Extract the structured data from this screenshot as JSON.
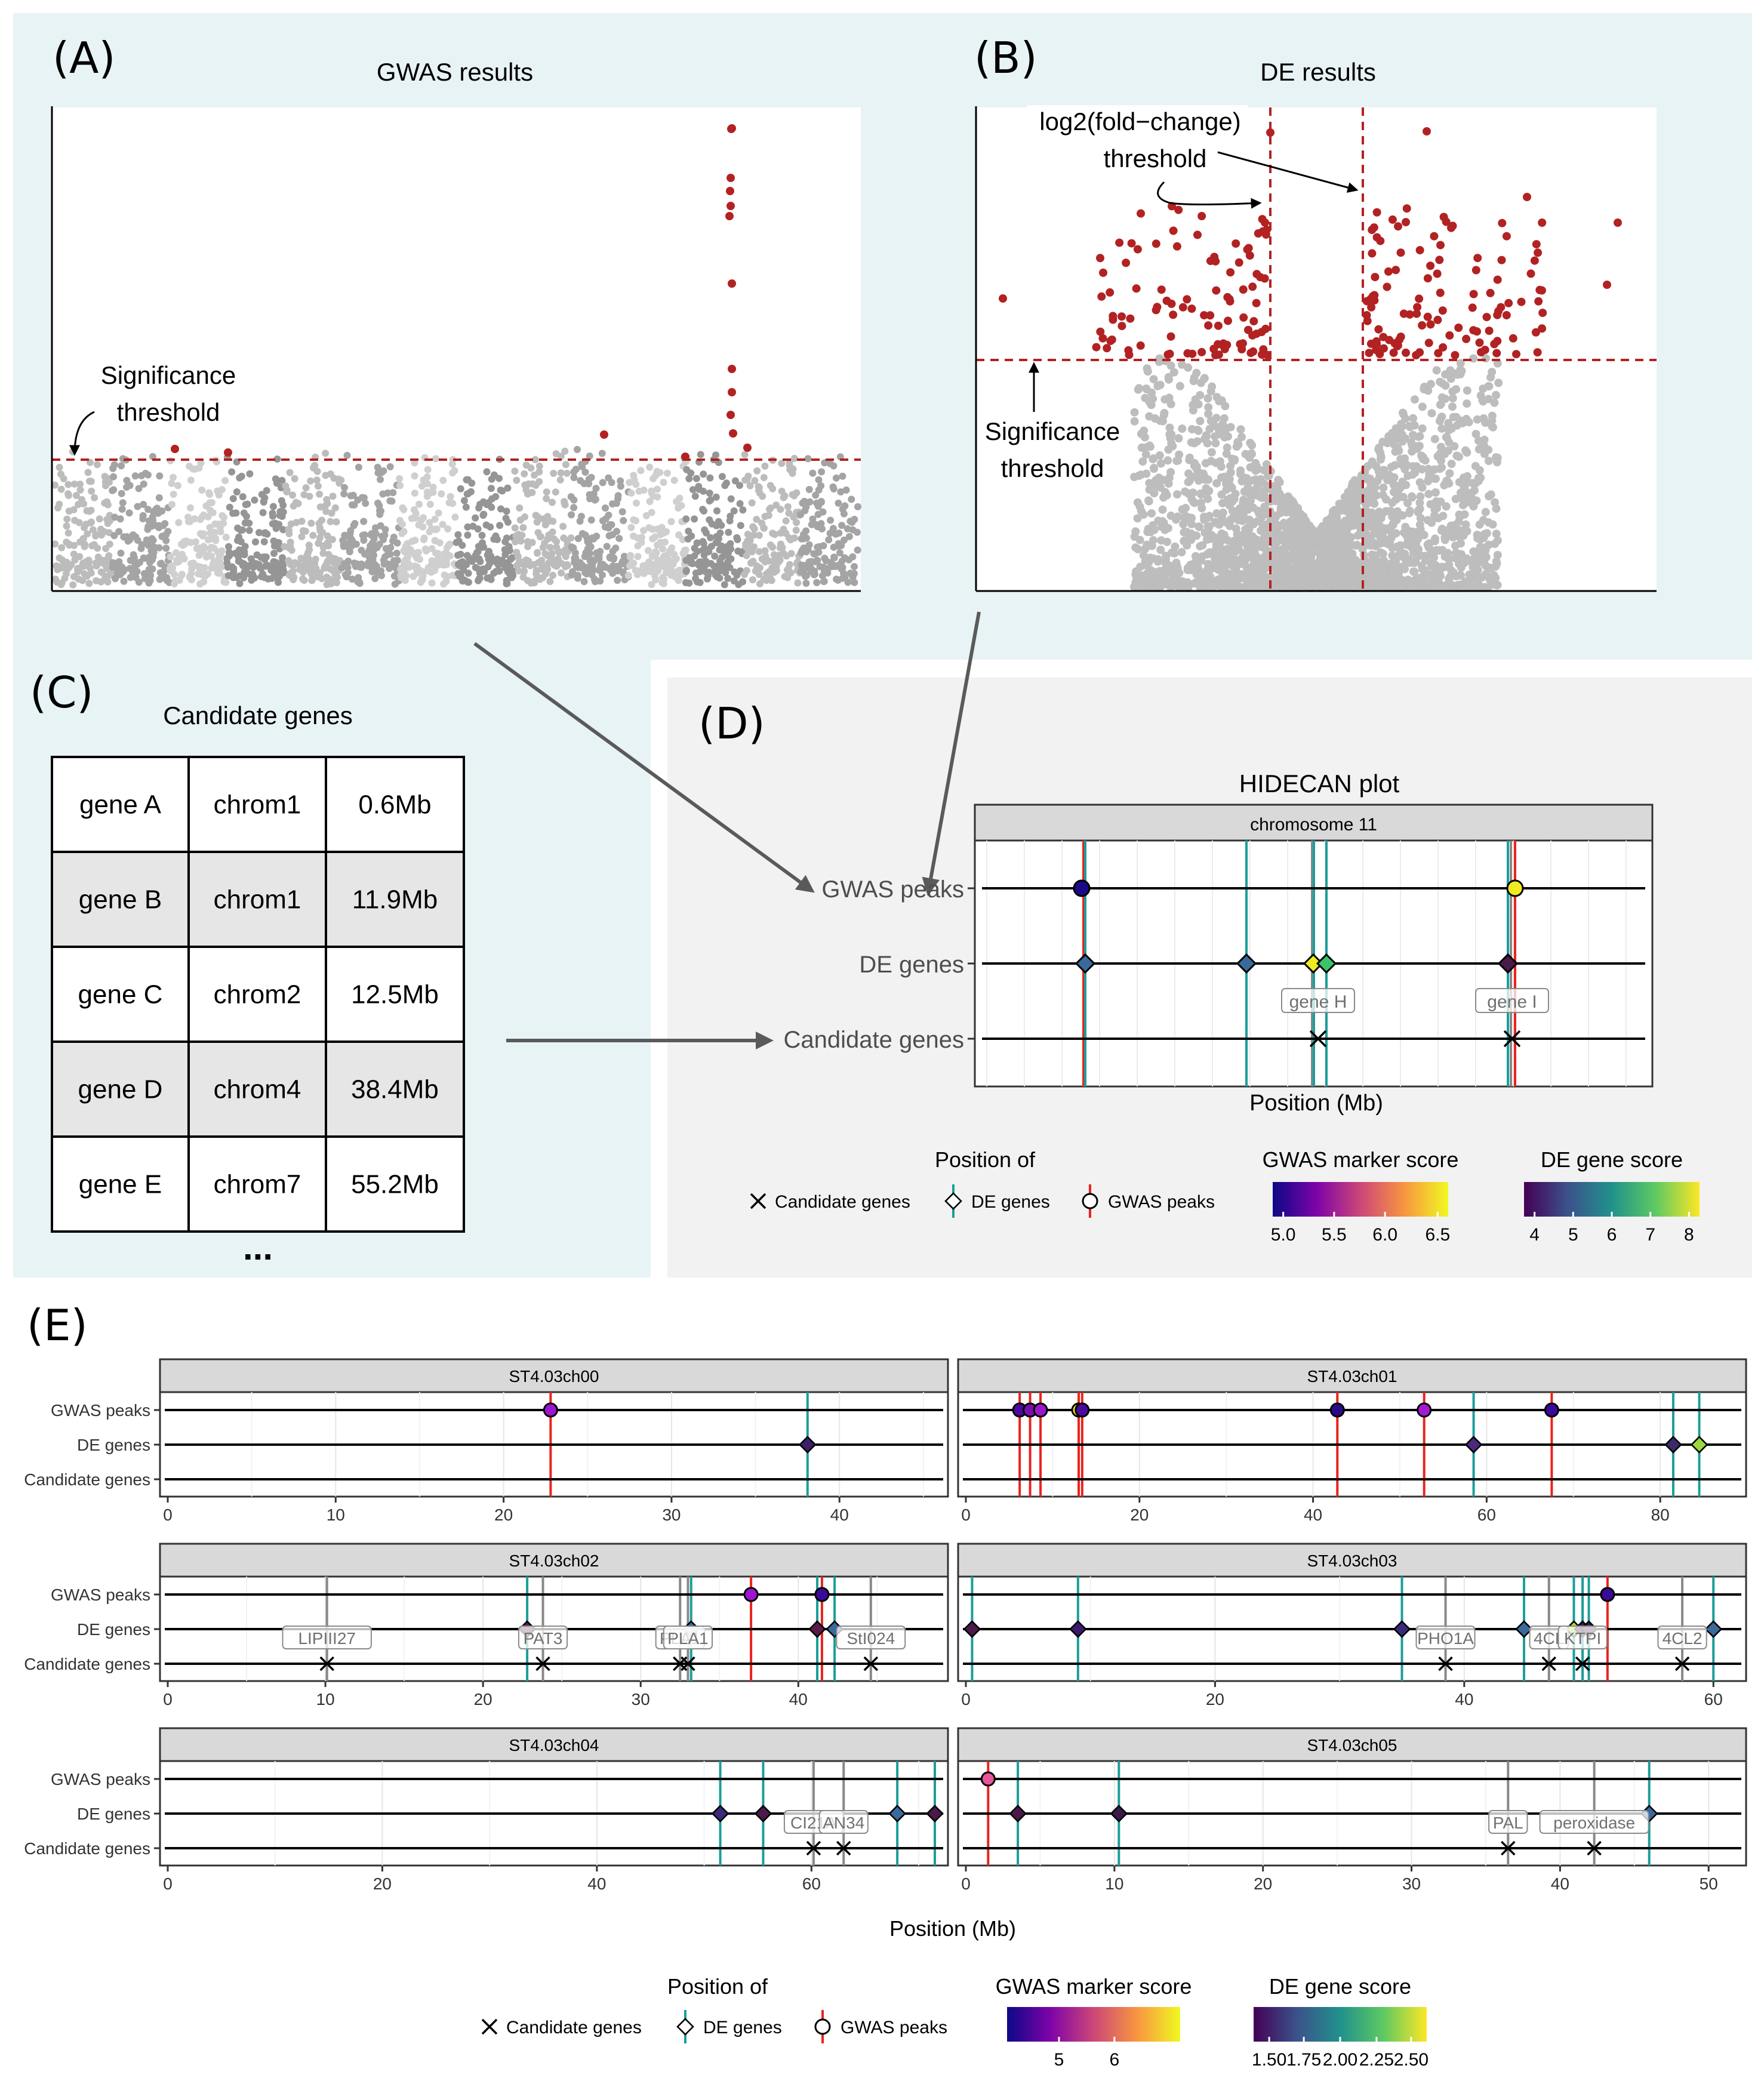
{
  "colors": {
    "panel_blue": "#e8f3f5",
    "panel_grey": "#f2f2f2",
    "red": "#b22222",
    "grey": "#bdbdbd",
    "gwas_line": "#e8241e",
    "de_line": "#1b9e9a",
    "cand_line": "#888888",
    "arrow": "#5a5a5a"
  },
  "panel_a": {
    "label": "(A)",
    "title": "GWAS results",
    "annotation_line1": "Significance",
    "annotation_line2": "threshold"
  },
  "panel_b": {
    "label": "(B)",
    "title": "DE results",
    "fc_line1": "log2(fold−change)",
    "fc_line2": "threshold",
    "sig_line1": "Significance",
    "sig_line2": "threshold"
  },
  "panel_c": {
    "label": "(C)",
    "title": "Candidate genes",
    "rows": [
      [
        "gene A",
        "chrom1",
        "0.6Mb"
      ],
      [
        "gene B",
        "chrom1",
        "11.9Mb"
      ],
      [
        "gene C",
        "chrom2",
        "12.5Mb"
      ],
      [
        "gene D",
        "chrom4",
        "38.4Mb"
      ],
      [
        "gene E",
        "chrom7",
        "55.2Mb"
      ]
    ],
    "ellipsis": "..."
  },
  "panel_d": {
    "label": "(D)",
    "title": "HIDECAN plot",
    "strip": "chromosome 11",
    "tracks": [
      "GWAS peaks",
      "DE genes",
      "Candidate genes"
    ],
    "xlabel": "Position (Mb)",
    "labels": [
      "gene H",
      "gene I"
    ],
    "legend": {
      "position_title": "Position of",
      "items": [
        "Candidate genes",
        "DE genes",
        "GWAS peaks"
      ],
      "gwas_title": "GWAS marker score",
      "gwas_ticks": [
        "5.0",
        "5.5",
        "6.0",
        "6.5"
      ],
      "de_title": "DE gene score",
      "de_ticks": [
        "4",
        "5",
        "6",
        "7",
        "8"
      ]
    }
  },
  "panel_e": {
    "label": "(E)",
    "xlabel": "Position (Mb)",
    "tracks": [
      "GWAS peaks",
      "DE genes",
      "Candidate genes"
    ],
    "facets": [
      {
        "name": "ST4.03ch00",
        "ticks": [
          "0",
          "10",
          "20",
          "30",
          "40"
        ],
        "max": 46,
        "tickvals": [
          0,
          10,
          20,
          30,
          40
        ],
        "gwas": [
          [
            22.8,
            "#9d15d3"
          ]
        ],
        "de": [
          [
            38.1,
            "#3b1f6b"
          ]
        ],
        "cand": []
      },
      {
        "name": "ST4.03ch01",
        "ticks": [
          "0",
          "20",
          "40",
          "60",
          "80"
        ],
        "max": 89,
        "tickvals": [
          0,
          20,
          40,
          60,
          80
        ],
        "gwas": [
          [
            6.2,
            "#4a0aa0"
          ],
          [
            7.4,
            "#7a0fb0"
          ],
          [
            8.6,
            "#9a17cc"
          ],
          [
            13.0,
            "#f2e21a"
          ],
          [
            13.4,
            "#4a0aa0"
          ],
          [
            42.8,
            "#2a0a8a"
          ],
          [
            52.8,
            "#a21bd0"
          ],
          [
            67.5,
            "#3a0a9a"
          ]
        ],
        "de": [
          [
            58.5,
            "#4b2a7a"
          ],
          [
            81.5,
            "#3b2a6b"
          ],
          [
            84.5,
            "#9bd93c"
          ]
        ],
        "cand": []
      },
      {
        "name": "ST4.03ch02",
        "ticks": [
          "0",
          "10",
          "20",
          "30",
          "40"
        ],
        "max": 49,
        "tickvals": [
          0,
          10,
          20,
          30,
          40
        ],
        "gwas": [
          [
            37.0,
            "#9d15d3"
          ],
          [
            41.5,
            "#3a0a9a"
          ]
        ],
        "de": [
          [
            22.8,
            "#5a1a4a"
          ],
          [
            33.2,
            "#3a6a9a"
          ],
          [
            41.2,
            "#5a1a4a"
          ],
          [
            42.3,
            "#3a6a9a"
          ]
        ],
        "cand": [
          [
            10.1,
            "LIPIII27"
          ],
          [
            23.8,
            "PAT3"
          ],
          [
            32.5,
            "PLA1"
          ],
          [
            33.0,
            "PLA1"
          ],
          [
            44.6,
            "StI024"
          ]
        ]
      },
      {
        "name": "ST4.03ch03",
        "ticks": [
          "0",
          "20",
          "40",
          "60"
        ],
        "max": 62,
        "tickvals": [
          0,
          20,
          40,
          60
        ],
        "gwas": [
          [
            51.5,
            "#3a0a9a"
          ]
        ],
        "de": [
          [
            0.5,
            "#4a1a4a"
          ],
          [
            9.0,
            "#3a1a6a"
          ],
          [
            35.0,
            "#3a2a7a"
          ],
          [
            44.8,
            "#3a6a9a"
          ],
          [
            48.8,
            "#aadc32"
          ],
          [
            49.5,
            "#3a1a4a"
          ],
          [
            50.0,
            "#3a1a4a"
          ],
          [
            60.0,
            "#3a6a9a"
          ]
        ],
        "cand": [
          [
            38.5,
            "PHO1A"
          ],
          [
            46.8,
            "4CL"
          ],
          [
            49.5,
            "KTPI"
          ],
          [
            57.5,
            "4CL2"
          ]
        ]
      },
      {
        "name": "ST4.03ch04",
        "ticks": [
          "0",
          "20",
          "40",
          "60"
        ],
        "max": 72,
        "tickvals": [
          0,
          20,
          40,
          60
        ],
        "gwas": [],
        "de": [
          [
            51.5,
            "#3a2a7a"
          ],
          [
            55.5,
            "#4a1a4a"
          ],
          [
            68.0,
            "#3a6a9a"
          ],
          [
            71.5,
            "#4a1a4a"
          ]
        ],
        "cand": [
          [
            60.2,
            "CI21A"
          ],
          [
            63.0,
            "AN34"
          ]
        ]
      },
      {
        "name": "ST4.03ch05",
        "ticks": [
          "0",
          "10",
          "20",
          "30",
          "40",
          "50"
        ],
        "max": 52,
        "tickvals": [
          0,
          10,
          20,
          30,
          40,
          50
        ],
        "gwas": [
          [
            1.5,
            "#e8559a"
          ]
        ],
        "de": [
          [
            3.5,
            "#4a1a4a"
          ],
          [
            10.3,
            "#3a1a4a"
          ],
          [
            46.0,
            "#3a6a9a"
          ]
        ],
        "cand": [
          [
            36.5,
            "PAL"
          ],
          [
            42.3,
            "peroxidase"
          ]
        ]
      }
    ],
    "legend": {
      "position_title": "Position of",
      "items": [
        "Candidate genes",
        "DE genes",
        "GWAS peaks"
      ],
      "gwas_title": "GWAS marker score",
      "gwas_ticks": [
        "5",
        "6"
      ],
      "de_title": "DE gene score",
      "de_ticks": [
        "1.50",
        "1.75",
        "2.00",
        "2.25",
        "2.50"
      ]
    }
  }
}
